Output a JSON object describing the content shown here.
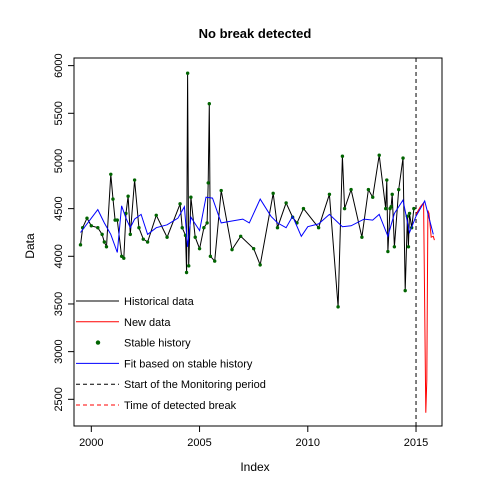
{
  "chart_data": {
    "type": "line",
    "title": "No break detected",
    "xlabel": "Index",
    "ylabel": "Data",
    "xlim": [
      1999.2,
      2016.2
    ],
    "ylim": [
      2220,
      6080
    ],
    "x_ticks": [
      2000,
      2005,
      2010,
      2015
    ],
    "y_ticks": [
      2500,
      3000,
      3500,
      4000,
      4500,
      5000,
      5500,
      6000
    ],
    "grid": false,
    "legend_position": "bottom-left",
    "vlines": [
      {
        "x": 2015.0,
        "style": "dashed",
        "color": "#000000",
        "label": "Start of the Monitoring period"
      }
    ],
    "series": [
      {
        "name": "Historical data",
        "style": "line",
        "color": "#000000",
        "x": [
          1999.5,
          1999.6,
          1999.8,
          2000.0,
          2000.3,
          2000.5,
          2000.6,
          2000.7,
          2000.9,
          2001.0,
          2001.1,
          2001.2,
          2001.4,
          2001.5,
          2001.6,
          2001.7,
          2001.8,
          2002.0,
          2002.2,
          2002.4,
          2002.6,
          2003.0,
          2003.5,
          2004.1,
          2004.2,
          2004.35,
          2004.4,
          2004.45,
          2004.5,
          2004.6,
          2004.8,
          2005.0,
          2005.2,
          2005.35,
          2005.4,
          2005.45,
          2005.5,
          2005.7,
          2006.0,
          2006.5,
          2006.9,
          2007.5,
          2007.8,
          2008.4,
          2008.6,
          2009.0,
          2009.3,
          2009.5,
          2009.8,
          2010.5,
          2011.0,
          2011.4,
          2011.6,
          2011.7,
          2012.0,
          2012.5,
          2012.8,
          2013.0,
          2013.3,
          2013.6,
          2013.65,
          2013.7,
          2013.8,
          2013.85,
          2013.9,
          2014.0,
          2014.2,
          2014.4,
          2014.5,
          2014.6,
          2014.65,
          2014.7,
          2014.8,
          2014.9
        ],
        "y": [
          4120,
          4300,
          4400,
          4320,
          4300,
          4230,
          4150,
          4100,
          4860,
          4600,
          4380,
          4380,
          4000,
          3980,
          4450,
          4630,
          4230,
          4800,
          4300,
          4180,
          4150,
          4430,
          4200,
          4550,
          4300,
          4220,
          3830,
          5920,
          3900,
          4620,
          4200,
          4080,
          4300,
          4350,
          4770,
          5600,
          4000,
          3950,
          4690,
          4070,
          4210,
          4080,
          3910,
          4660,
          4300,
          4560,
          4410,
          4350,
          4500,
          4300,
          4650,
          3470,
          5050,
          4500,
          4700,
          4200,
          4700,
          4620,
          5060,
          4500,
          4800,
          4050,
          4500,
          4520,
          4650,
          4100,
          4700,
          5030,
          3640,
          4420,
          4100,
          4450,
          4300,
          4500
        ]
      },
      {
        "name": "New data",
        "style": "line",
        "color": "#ff0000",
        "x": [
          2015.0,
          2015.2,
          2015.35,
          2015.45,
          2015.5,
          2015.55,
          2015.6,
          2015.7,
          2015.8,
          2015.85
        ],
        "y": [
          4440,
          4520,
          4560,
          2360,
          2700,
          4480,
          4450,
          4200,
          4210,
          4170
        ]
      },
      {
        "name": "Stable history",
        "style": "points",
        "color": "#006400",
        "x": [
          1999.5,
          1999.6,
          1999.8,
          2000.0,
          2000.3,
          2000.5,
          2000.6,
          2000.7,
          2000.9,
          2001.0,
          2001.1,
          2001.2,
          2001.4,
          2001.5,
          2001.6,
          2001.7,
          2001.8,
          2002.0,
          2002.2,
          2002.4,
          2002.6,
          2003.0,
          2003.5,
          2004.1,
          2004.2,
          2004.35,
          2004.4,
          2004.45,
          2004.5,
          2004.6,
          2004.8,
          2005.0,
          2005.2,
          2005.35,
          2005.4,
          2005.45,
          2005.5,
          2005.7,
          2006.0,
          2006.5,
          2006.9,
          2007.5,
          2007.8,
          2008.4,
          2008.6,
          2009.0,
          2009.3,
          2009.5,
          2009.8,
          2010.5,
          2011.0,
          2011.4,
          2011.6,
          2011.7,
          2012.0,
          2012.5,
          2012.8,
          2013.0,
          2013.3,
          2013.6,
          2013.65,
          2013.7,
          2013.8,
          2013.85,
          2013.9,
          2014.0,
          2014.2,
          2014.4,
          2014.5,
          2014.6,
          2014.65,
          2014.7,
          2014.8,
          2014.9
        ],
        "y": [
          4120,
          4300,
          4400,
          4320,
          4300,
          4230,
          4150,
          4100,
          4860,
          4600,
          4380,
          4380,
          4000,
          3980,
          4450,
          4630,
          4230,
          4800,
          4300,
          4180,
          4150,
          4430,
          4200,
          4550,
          4300,
          4220,
          3830,
          5920,
          3900,
          4620,
          4200,
          4080,
          4300,
          4350,
          4770,
          5600,
          4000,
          3950,
          4690,
          4070,
          4210,
          4080,
          3910,
          4660,
          4300,
          4560,
          4410,
          4350,
          4500,
          4300,
          4650,
          3470,
          5050,
          4500,
          4700,
          4200,
          4700,
          4620,
          5060,
          4500,
          4800,
          4050,
          4500,
          4520,
          4650,
          4100,
          4700,
          5030,
          3640,
          4420,
          4100,
          4450,
          4300,
          4500
        ]
      },
      {
        "name": "Fit based on stable history",
        "style": "line",
        "color": "#0000ff",
        "x": [
          1999.5,
          2000.0,
          2000.3,
          2000.6,
          2000.9,
          2001.2,
          2001.4,
          2001.6,
          2001.8,
          2002.0,
          2002.3,
          2002.6,
          2003.0,
          2003.5,
          2004.0,
          2004.3,
          2004.45,
          2004.6,
          2005.0,
          2005.3,
          2005.6,
          2006.0,
          2006.5,
          2007.0,
          2007.3,
          2007.8,
          2008.3,
          2008.6,
          2009.0,
          2009.3,
          2009.7,
          2010.0,
          2010.5,
          2011.0,
          2011.6,
          2012.0,
          2012.6,
          2013.0,
          2013.3,
          2013.7,
          2014.0,
          2014.4,
          2014.7,
          2015.0,
          2015.4,
          2015.8
        ],
        "y": [
          4250,
          4400,
          4490,
          4350,
          4230,
          4040,
          4530,
          4400,
          4300,
          4390,
          4440,
          4230,
          4300,
          4330,
          4400,
          4520,
          4100,
          4410,
          4270,
          4620,
          4610,
          4350,
          4370,
          4390,
          4350,
          4600,
          4420,
          4350,
          4300,
          4420,
          4210,
          4310,
          4340,
          4440,
          4310,
          4320,
          4390,
          4380,
          4440,
          4210,
          4450,
          4590,
          4250,
          4420,
          4580,
          4230
        ]
      }
    ],
    "legend": [
      {
        "label": "Historical data",
        "symbol": "line",
        "color": "#000000"
      },
      {
        "label": "New data",
        "symbol": "line",
        "color": "#ff0000"
      },
      {
        "label": "Stable history",
        "symbol": "point",
        "color": "#006400"
      },
      {
        "label": "Fit based on stable history",
        "symbol": "line",
        "color": "#0000ff"
      },
      {
        "label": "Start of the Monitoring period",
        "symbol": "dashed",
        "color": "#000000"
      },
      {
        "label": "Time of detected break",
        "symbol": "dashed",
        "color": "#ff0000"
      }
    ]
  }
}
